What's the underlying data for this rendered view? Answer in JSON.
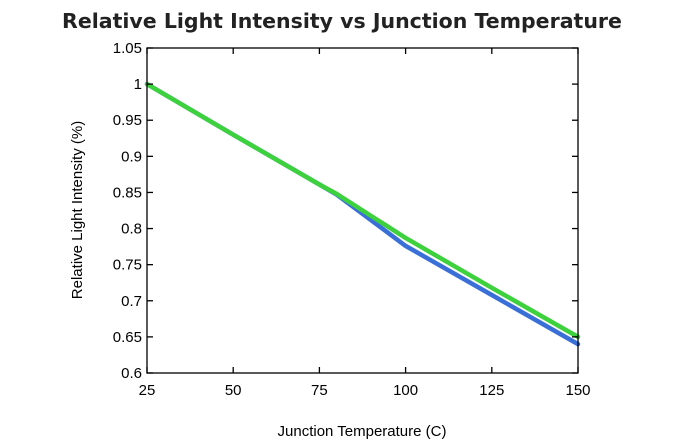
{
  "chart_data": {
    "type": "line",
    "title": "Relative Light Intensity vs Junction Temperature",
    "xlabel": "Junction Temperature (C)",
    "ylabel": "Relative Light Intensity (%)",
    "xlim": [
      25,
      150
    ],
    "ylim": [
      0.6,
      1.05
    ],
    "x_ticks": [
      25,
      50,
      75,
      100,
      125,
      150
    ],
    "x_tick_labels": [
      "25",
      "50",
      "75",
      "100",
      "125",
      "150"
    ],
    "y_ticks": [
      0.6,
      0.65,
      0.7,
      0.75,
      0.8,
      0.85,
      0.9,
      0.95,
      1,
      1.05
    ],
    "y_tick_labels": [
      "0.6",
      "0.65",
      "0.7",
      "0.75",
      "0.8",
      "0.85",
      "0.9",
      "0.95",
      "1",
      "1.05"
    ],
    "grid": false,
    "legend": "none",
    "series": [
      {
        "color": "#3a6fd8",
        "x": [
          25,
          50,
          75,
          80,
          100,
          125,
          150
        ],
        "y": [
          1.0,
          0.93,
          0.861,
          0.847,
          0.776,
          0.708,
          0.64
        ]
      },
      {
        "color": "#3dd13d",
        "x": [
          25,
          50,
          75,
          80,
          100,
          125,
          150
        ],
        "y": [
          1.0,
          0.93,
          0.861,
          0.848,
          0.787,
          0.718,
          0.65
        ]
      }
    ]
  }
}
